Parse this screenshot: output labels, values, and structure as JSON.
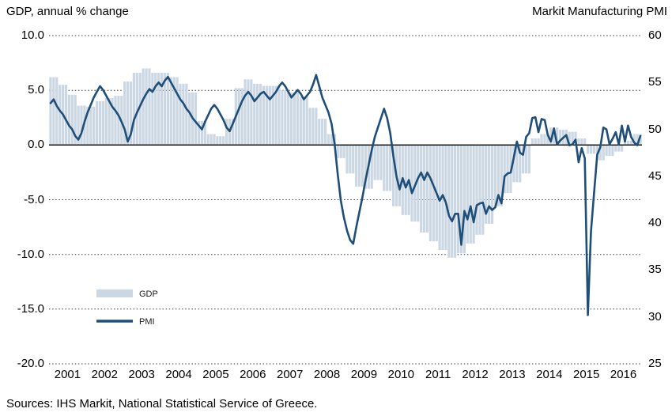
{
  "page": {
    "left_axis_title": "GDP, annual % change",
    "right_axis_title": "Markit Manufacturing PMI",
    "source": "Sources: IHS Markit, National Statistical Service of Greece."
  },
  "chart_data": {
    "type": "combo",
    "title": "",
    "x_axis": {
      "labels": [
        "2001",
        "2002",
        "2003",
        "2004",
        "2005",
        "2006",
        "2007",
        "2008",
        "2009",
        "2010",
        "2011",
        "2012",
        "2013",
        "2014",
        "2015",
        "2016"
      ],
      "start": "2001-01",
      "end": "2016-12"
    },
    "left_axis": {
      "label": "GDP, annual % change",
      "tick_values": [
        10,
        5,
        0,
        -5,
        -10,
        -15,
        -20
      ],
      "tick_labels": [
        "10.0",
        "5.0",
        "0.0",
        "-5.0",
        "-10.0",
        "-15.0",
        "-20.0"
      ],
      "min": -20,
      "max": 10
    },
    "right_axis": {
      "label": "Markit Manufacturing PMI",
      "tick_values": [
        60,
        55,
        50,
        45,
        40,
        35,
        30,
        25
      ],
      "tick_labels": [
        "60",
        "55",
        "50",
        "45",
        "40",
        "35",
        "30",
        "25"
      ],
      "min": 25,
      "max": 60
    },
    "grid": "dotted horizontal lines at left-axis ticks, solid line at 0",
    "series": [
      {
        "name": "GDP",
        "type": "bar",
        "axis": "left",
        "frequency": "quarterly",
        "start": "2001-Q1",
        "values": [
          6.2,
          5.5,
          4.6,
          3.6,
          3.5,
          4.0,
          4.3,
          4.5,
          5.8,
          6.6,
          7.0,
          6.6,
          6.6,
          6.2,
          5.6,
          4.8,
          2.2,
          1.0,
          0.8,
          2.4,
          5.2,
          6.0,
          5.6,
          5.4,
          5.4,
          5.0,
          4.8,
          4.4,
          3.4,
          2.4,
          1.0,
          -1.2,
          -2.6,
          -3.8,
          -4.0,
          -3.2,
          -4.2,
          -5.6,
          -6.4,
          -7.0,
          -8.0,
          -8.8,
          -9.6,
          -10.3,
          -9.9,
          -9.0,
          -8.2,
          -7.2,
          -5.6,
          -4.4,
          -3.4,
          -2.6,
          0.6,
          1.0,
          1.6,
          1.4,
          1.2,
          0.6,
          -0.8,
          -1.4,
          -1.0,
          -0.6,
          0.4,
          1.0
        ]
      },
      {
        "name": "PMI",
        "type": "line",
        "axis": "right",
        "frequency": "monthly",
        "start": "2001-01",
        "values": [
          52.8,
          53.2,
          52.5,
          52.0,
          51.6,
          51.0,
          50.4,
          50.0,
          49.3,
          48.9,
          49.6,
          50.8,
          51.8,
          52.6,
          53.4,
          54.0,
          54.6,
          54.2,
          53.6,
          53.0,
          52.4,
          52.0,
          51.5,
          50.8,
          50.0,
          48.7,
          49.5,
          51.0,
          51.8,
          52.5,
          53.2,
          53.8,
          54.3,
          54.0,
          54.6,
          55.0,
          54.6,
          55.2,
          55.6,
          55.0,
          54.4,
          53.8,
          53.2,
          52.8,
          52.2,
          51.8,
          51.2,
          50.8,
          50.4,
          50.0,
          50.8,
          51.5,
          52.2,
          52.6,
          52.2,
          51.6,
          51.0,
          50.2,
          49.8,
          50.6,
          51.4,
          52.2,
          53.0,
          53.6,
          54.0,
          53.6,
          53.0,
          53.4,
          53.8,
          54.0,
          53.6,
          53.2,
          53.6,
          54.0,
          54.6,
          55.0,
          54.6,
          54.0,
          53.4,
          53.8,
          54.2,
          53.8,
          53.2,
          53.6,
          54.0,
          54.8,
          55.8,
          54.6,
          53.4,
          52.6,
          51.8,
          50.6,
          48.4,
          45.2,
          42.4,
          40.6,
          39.2,
          38.2,
          37.8,
          39.6,
          41.2,
          42.8,
          44.6,
          46.2,
          47.8,
          49.2,
          50.2,
          51.2,
          52.2,
          51.2,
          49.6,
          47.2,
          45.0,
          43.6,
          44.8,
          43.8,
          44.6,
          43.2,
          44.0,
          44.8,
          45.4,
          44.6,
          45.4,
          44.8,
          44.0,
          43.2,
          42.4,
          43.0,
          42.2,
          40.8,
          40.2,
          41.0,
          41.0,
          37.7,
          41.3,
          40.4,
          41.8,
          40.1,
          41.9,
          42.1,
          42.2,
          41.0,
          41.8,
          41.4,
          41.7,
          43.0,
          42.1,
          45.0,
          45.3,
          45.4,
          47.0,
          48.7,
          47.5,
          47.3,
          49.2,
          49.6,
          51.2,
          51.3,
          49.7,
          51.1,
          51.0,
          49.4,
          48.7,
          50.1,
          48.4,
          48.8,
          49.1,
          49.4,
          48.3,
          48.4,
          48.9,
          46.5,
          48.0,
          46.9,
          30.2,
          39.1,
          43.3,
          47.3,
          48.1,
          50.2,
          50.0,
          48.4,
          49.0,
          49.7,
          48.4,
          50.4,
          48.7,
          50.4,
          49.2,
          48.6,
          48.3,
          49.3
        ]
      }
    ],
    "legend": {
      "position": "inside-lower-left",
      "items": [
        {
          "label": "GDP",
          "swatch": "area",
          "color": "#cbd7e3"
        },
        {
          "label": "PMI",
          "swatch": "line",
          "color": "#1f4e79"
        }
      ]
    },
    "colors": {
      "gdp_bar": "#cbd7e3",
      "pmi_line": "#1f4e79",
      "zero_line": "#000000",
      "grid": "#3a3a3a"
    }
  }
}
